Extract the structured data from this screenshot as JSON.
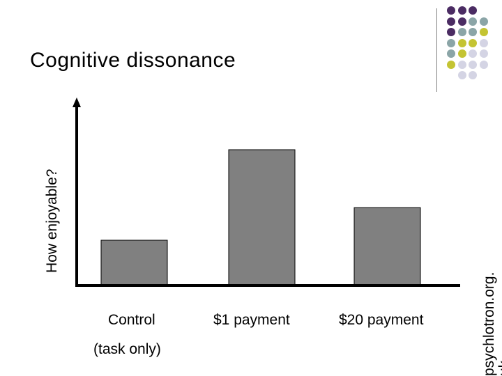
{
  "slide": {
    "title": "Cognitive dissonance",
    "side_text": "psychlotron.org.",
    "side_text_2": "uk"
  },
  "colors": {
    "bar": "#808080",
    "dot_purple": "#4b2c63",
    "dot_teal": "#8ba5a7",
    "dot_olive": "#c4c433",
    "dot_lavender": "#d4d4e4"
  },
  "chart_data": {
    "type": "bar",
    "ylabel": "How enjoyable?",
    "xlabel": "",
    "categories": [
      "Control",
      "$1 payment",
      "$20 payment"
    ],
    "category_sublabels": [
      "(task only)",
      "",
      ""
    ],
    "values": [
      2.5,
      7.5,
      4.3
    ],
    "ylim": [
      0,
      10
    ],
    "grid": false
  }
}
